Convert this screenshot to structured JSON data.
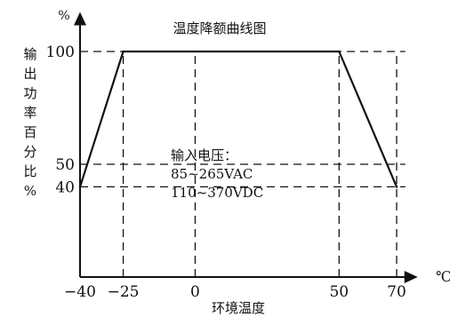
{
  "chart_data": {
    "type": "line",
    "title": "温度降额曲线图",
    "xlabel": "环境温度",
    "x_unit": "℃",
    "ylabel_chars": [
      "输",
      "出",
      "功",
      "率",
      "百",
      "分",
      "比",
      "%"
    ],
    "y_unit": "%",
    "x_ticks": [
      -40,
      -25,
      0,
      50,
      70
    ],
    "x_tick_labels": [
      "−40",
      "−25",
      "0",
      "50",
      "70"
    ],
    "y_ticks": [
      40,
      50,
      100
    ],
    "y_tick_labels": [
      "40",
      "50",
      "100"
    ],
    "xlim": [
      -40,
      73
    ],
    "ylim": [
      0,
      112
    ],
    "grid": "dashed reference lines",
    "series": [
      {
        "values": [
          [
            -40,
            40
          ],
          [
            -25,
            100
          ],
          [
            50,
            100
          ],
          [
            70,
            40
          ]
        ]
      }
    ],
    "annotation": [
      "输入电压：",
      "85~265VAC",
      "110~370VDC"
    ]
  },
  "colors": {
    "line": "#111111",
    "background": "#ffffff"
  }
}
